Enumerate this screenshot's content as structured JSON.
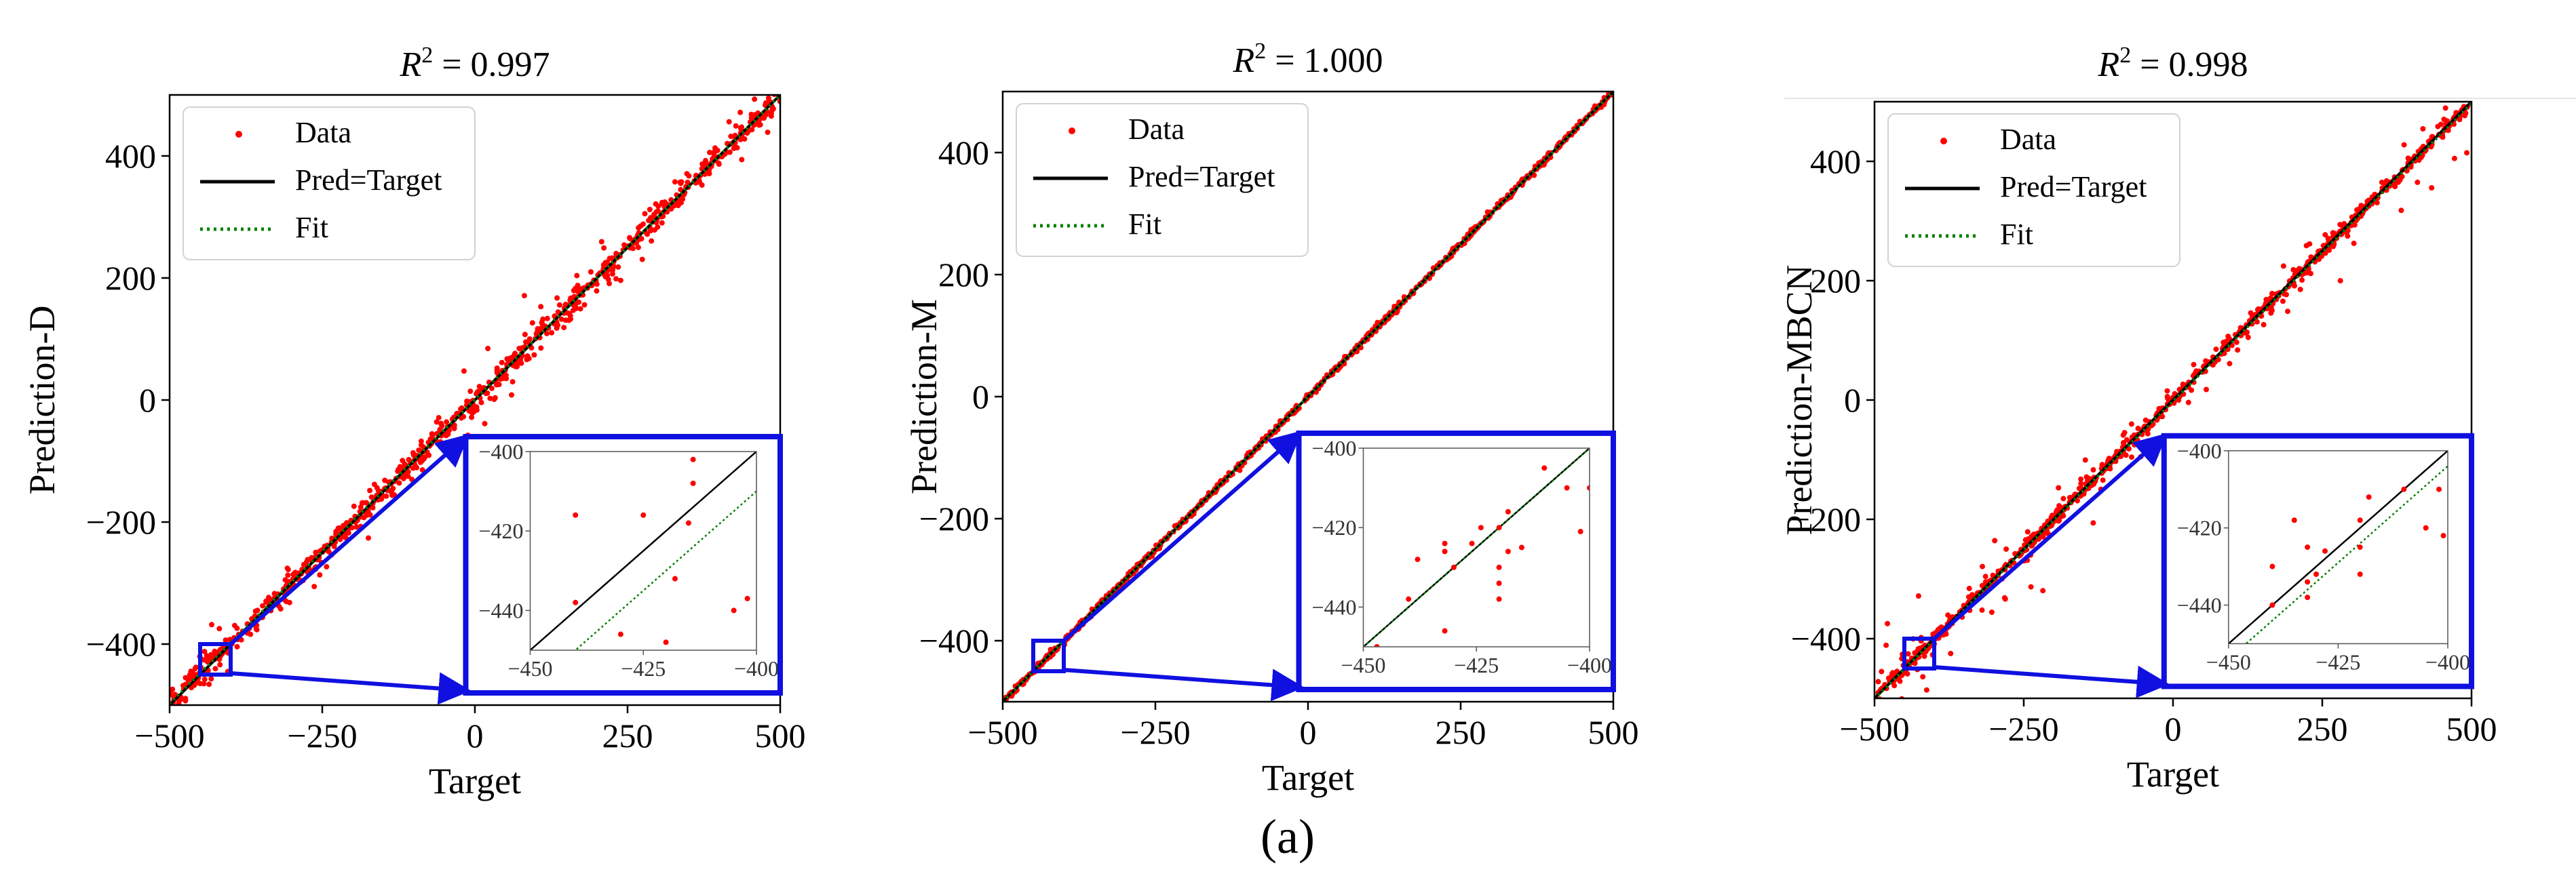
{
  "figure": {
    "caption": "(a)"
  },
  "chart_data": [
    {
      "type": "scatter",
      "title": "R^2 = 0.997",
      "r2": "0.997",
      "xlabel": "Target",
      "ylabel": "Prediction-D",
      "xlim": [
        -500,
        500
      ],
      "ylim": [
        -500,
        500
      ],
      "xticks": [
        -500,
        -250,
        0,
        250,
        500
      ],
      "yticks": [
        -400,
        -200,
        0,
        200,
        400
      ],
      "legend": {
        "placement": "top-left",
        "entries": [
          "Data",
          "Pred=Target",
          "Fit"
        ]
      },
      "series": [
        {
          "name": "Data",
          "color": "#ff0000",
          "noise": 10,
          "outlier_rate": 0.12,
          "outlier_scale": 30,
          "seed": 11
        },
        {
          "name": "Pred=Target",
          "color": "#000000",
          "slope": 1,
          "intercept": 0
        },
        {
          "name": "Fit",
          "color": "#008000",
          "style": "dotted",
          "slope": 0.997,
          "intercept": 1
        }
      ],
      "inset": {
        "xlim": [
          -450,
          -400
        ],
        "ylim": [
          -450,
          -400
        ],
        "xticks": [
          -450,
          -425,
          -400
        ],
        "yticks": [
          -400,
          -420,
          -440
        ],
        "points": [
          [
            -440,
            -416
          ],
          [
            -425,
            -416
          ],
          [
            -415,
            -418
          ],
          [
            -414,
            -408
          ],
          [
            -414,
            -402
          ],
          [
            -414,
            -396
          ],
          [
            -414,
            -392
          ],
          [
            -418,
            -432
          ],
          [
            -405,
            -440
          ],
          [
            -440,
            -438
          ],
          [
            -402,
            -437
          ],
          [
            -420,
            -448
          ],
          [
            -430,
            -446
          ]
        ],
        "fit_slope": 1.0,
        "fit_intercept": -10
      }
    },
    {
      "type": "scatter",
      "title": "R^2 = 1.000",
      "r2": "1.000",
      "xlabel": "Target",
      "ylabel": "Prediction-M",
      "xlim": [
        -500,
        500
      ],
      "ylim": [
        -500,
        500
      ],
      "xticks": [
        -500,
        -250,
        0,
        250,
        500
      ],
      "yticks": [
        -400,
        -200,
        0,
        200,
        400
      ],
      "legend": {
        "placement": "top-left",
        "entries": [
          "Data",
          "Pred=Target",
          "Fit"
        ]
      },
      "series": [
        {
          "name": "Data",
          "color": "#ff0000",
          "noise": 2.5,
          "outlier_rate": 0.0,
          "outlier_scale": 0,
          "seed": 23
        },
        {
          "name": "Pred=Target",
          "color": "#000000",
          "slope": 1,
          "intercept": 0
        },
        {
          "name": "Fit",
          "color": "#008000",
          "style": "dotted",
          "slope": 1.0,
          "intercept": 0
        }
      ],
      "inset": {
        "xlim": [
          -450,
          -400
        ],
        "ylim": [
          -450,
          -400
        ],
        "xticks": [
          -450,
          -425,
          -400
        ],
        "yticks": [
          -400,
          -420,
          -440
        ],
        "points": [
          [
            -447,
            -450
          ],
          [
            -440,
            -438
          ],
          [
            -438,
            -428
          ],
          [
            -432,
            -424
          ],
          [
            -432,
            -426
          ],
          [
            -432,
            -446
          ],
          [
            -430,
            -430
          ],
          [
            -426,
            -424
          ],
          [
            -424,
            -420
          ],
          [
            -420,
            -420
          ],
          [
            -420,
            -430
          ],
          [
            -420,
            -434
          ],
          [
            -420,
            -438
          ],
          [
            -418,
            -416
          ],
          [
            -418,
            -426
          ],
          [
            -415,
            -425
          ],
          [
            -410,
            -405
          ],
          [
            -405,
            -410
          ],
          [
            -400,
            -410
          ],
          [
            -402,
            -421
          ]
        ],
        "fit_slope": 1.0,
        "fit_intercept": 0
      }
    },
    {
      "type": "scatter",
      "title": "R^2 = 0.998",
      "r2": "0.998",
      "xlabel": "Target",
      "ylabel": "Prediction-MBCN",
      "xlim": [
        -500,
        500
      ],
      "ylim": [
        -500,
        500
      ],
      "xticks": [
        -500,
        -250,
        0,
        250,
        500
      ],
      "yticks": [
        -400,
        -200,
        0,
        200,
        400
      ],
      "legend": {
        "placement": "top-left",
        "entries": [
          "Data",
          "Pred=Target",
          "Fit"
        ]
      },
      "series": [
        {
          "name": "Data",
          "color": "#ff0000",
          "noise": 6,
          "outlier_rate": 0.1,
          "outlier_scale": 40,
          "seed": 37
        },
        {
          "name": "Pred=Target",
          "color": "#000000",
          "slope": 1,
          "intercept": 0
        },
        {
          "name": "Fit",
          "color": "#008000",
          "style": "dotted",
          "slope": 0.998,
          "intercept": -2
        }
      ],
      "inset": {
        "xlim": [
          -450,
          -400
        ],
        "ylim": [
          -450,
          -400
        ],
        "xticks": [
          -450,
          -425,
          -400
        ],
        "yticks": [
          -400,
          -420,
          -440
        ],
        "points": [
          [
            -440,
            -430
          ],
          [
            -440,
            -440
          ],
          [
            -435,
            -418
          ],
          [
            -432,
            -425
          ],
          [
            -432,
            -434
          ],
          [
            -432,
            -438
          ],
          [
            -430,
            -432
          ],
          [
            -428,
            -426
          ],
          [
            -420,
            -418
          ],
          [
            -420,
            -425
          ],
          [
            -420,
            -432
          ],
          [
            -418,
            -412
          ],
          [
            -410,
            -410
          ],
          [
            -405,
            -420
          ],
          [
            -401,
            -422
          ],
          [
            -402,
            -410
          ]
        ],
        "fit_slope": 1.0,
        "fit_intercept": -4
      }
    }
  ]
}
